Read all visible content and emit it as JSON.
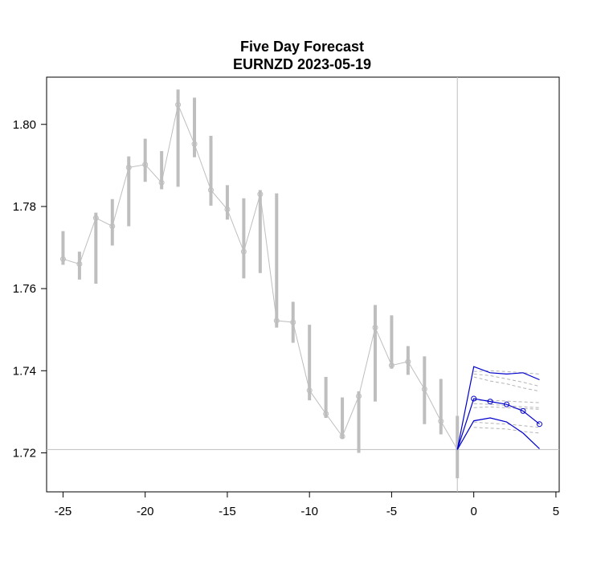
{
  "chart_data": {
    "type": "line",
    "title": "Five Day Forecast",
    "subtitle": "EURNZD 2023-05-19",
    "xlim": [
      -26,
      5.2
    ],
    "ylim": [
      1.7105,
      1.8115
    ],
    "x_ticks": [
      {
        "value": -25,
        "label": "-25"
      },
      {
        "value": -20,
        "label": "-20"
      },
      {
        "value": -15,
        "label": "-15"
      },
      {
        "value": -10,
        "label": "-10"
      },
      {
        "value": -5,
        "label": "-5"
      },
      {
        "value": 0,
        "label": "0"
      },
      {
        "value": 5,
        "label": "5"
      }
    ],
    "y_ticks": [
      {
        "value": 1.72,
        "label": "1.72"
      },
      {
        "value": 1.74,
        "label": "1.74"
      },
      {
        "value": 1.76,
        "label": "1.76"
      },
      {
        "value": 1.78,
        "label": "1.78"
      },
      {
        "value": 1.8,
        "label": "1.80"
      }
    ],
    "reference_lines": {
      "vertical_x": -1,
      "horizontal_y": 1.7208
    },
    "history": {
      "color": "#bebebe",
      "x": [
        -25,
        -24,
        -23,
        -22,
        -21,
        -20,
        -19,
        -18,
        -17,
        -16,
        -15,
        -14,
        -13,
        -12,
        -11,
        -10,
        -9,
        -8,
        -7,
        -6,
        -5,
        -4,
        -3,
        -2,
        -1
      ],
      "close": [
        1.7672,
        1.766,
        1.7772,
        1.7752,
        1.7895,
        1.7902,
        1.7858,
        1.8048,
        1.7952,
        1.784,
        1.7793,
        1.769,
        1.783,
        1.7522,
        1.7518,
        1.7352,
        1.7295,
        1.724,
        1.7338,
        1.7505,
        1.7413,
        1.7422,
        1.7355,
        1.7277,
        1.7208
      ],
      "high": [
        1.774,
        1.769,
        1.7785,
        1.7818,
        1.7922,
        1.7965,
        1.7935,
        1.8085,
        1.8065,
        1.7972,
        1.7852,
        1.782,
        1.784,
        1.7832,
        1.7568,
        1.7512,
        1.7385,
        1.7335,
        1.735,
        1.756,
        1.7535,
        1.746,
        1.7435,
        1.738,
        1.729
      ],
      "low": [
        1.7658,
        1.7622,
        1.7612,
        1.7705,
        1.7752,
        1.786,
        1.7842,
        1.7848,
        1.792,
        1.7802,
        1.7768,
        1.7625,
        1.7638,
        1.7505,
        1.7468,
        1.7328,
        1.7285,
        1.7235,
        1.72,
        1.7325,
        1.7405,
        1.739,
        1.727,
        1.7245,
        1.7138
      ]
    },
    "forecast": {
      "color": "#0000cd",
      "x": [
        -1,
        0,
        1,
        2,
        3,
        4
      ],
      "mean": [
        1.7208,
        1.7332,
        1.7325,
        1.7318,
        1.7302,
        1.727
      ],
      "upper": [
        1.7208,
        1.741,
        1.7395,
        1.7392,
        1.7395,
        1.7378
      ],
      "lower": [
        1.7208,
        1.7278,
        1.7285,
        1.7275,
        1.7248,
        1.721
      ]
    },
    "scenarios": {
      "color": "#b4b4b4",
      "x": [
        0,
        1,
        2,
        3,
        4
      ],
      "series": [
        [
          1.7398,
          1.74,
          1.7398,
          1.7395,
          1.7392
        ],
        [
          1.7392,
          1.7388,
          1.738,
          1.7372,
          1.7362
        ],
        [
          1.7385,
          1.7375,
          1.7368,
          1.7358,
          1.735
        ],
        [
          1.7328,
          1.7328,
          1.7326,
          1.7324,
          1.7322
        ],
        [
          1.732,
          1.7318,
          1.7315,
          1.7312,
          1.731
        ],
        [
          1.731,
          1.7312,
          1.731,
          1.7308,
          1.7306
        ],
        [
          1.7275,
          1.7272,
          1.727,
          1.7266,
          1.7262
        ],
        [
          1.7262,
          1.726,
          1.7258,
          1.7252,
          1.7248
        ]
      ]
    }
  }
}
